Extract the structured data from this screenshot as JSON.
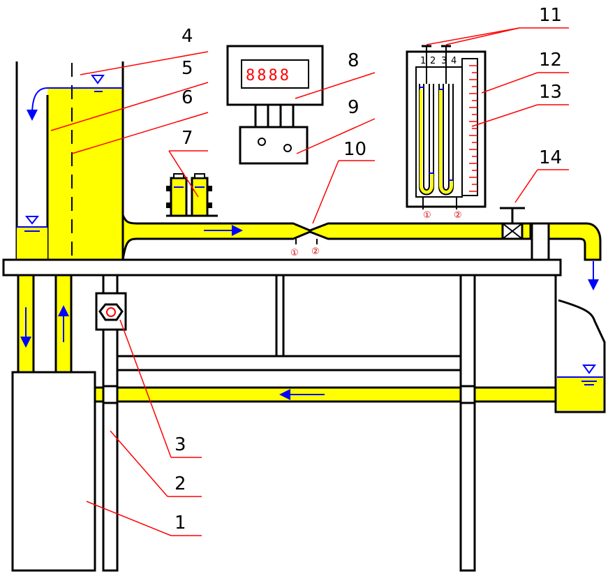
{
  "labels": {
    "l1": "1",
    "l2": "2",
    "l3": "3",
    "l4": "4",
    "l5": "5",
    "l6": "6",
    "l7": "7",
    "l8": "8",
    "l9": "9",
    "l10": "10",
    "l11": "11",
    "l12": "12",
    "l13": "13",
    "l14": "14"
  },
  "taps": {
    "pipe_tap1": "①",
    "pipe_tap2": "②",
    "mano_tap1": "①",
    "mano_tap2": "②"
  },
  "manometer": {
    "col1": "1",
    "col2": "2",
    "col3": "3",
    "col4": "4"
  },
  "display": {
    "digits": "8888"
  },
  "colors": {
    "water": "#ffff00",
    "arrow": "#0000ff",
    "leader": "#ff0000",
    "outline": "#000000"
  }
}
